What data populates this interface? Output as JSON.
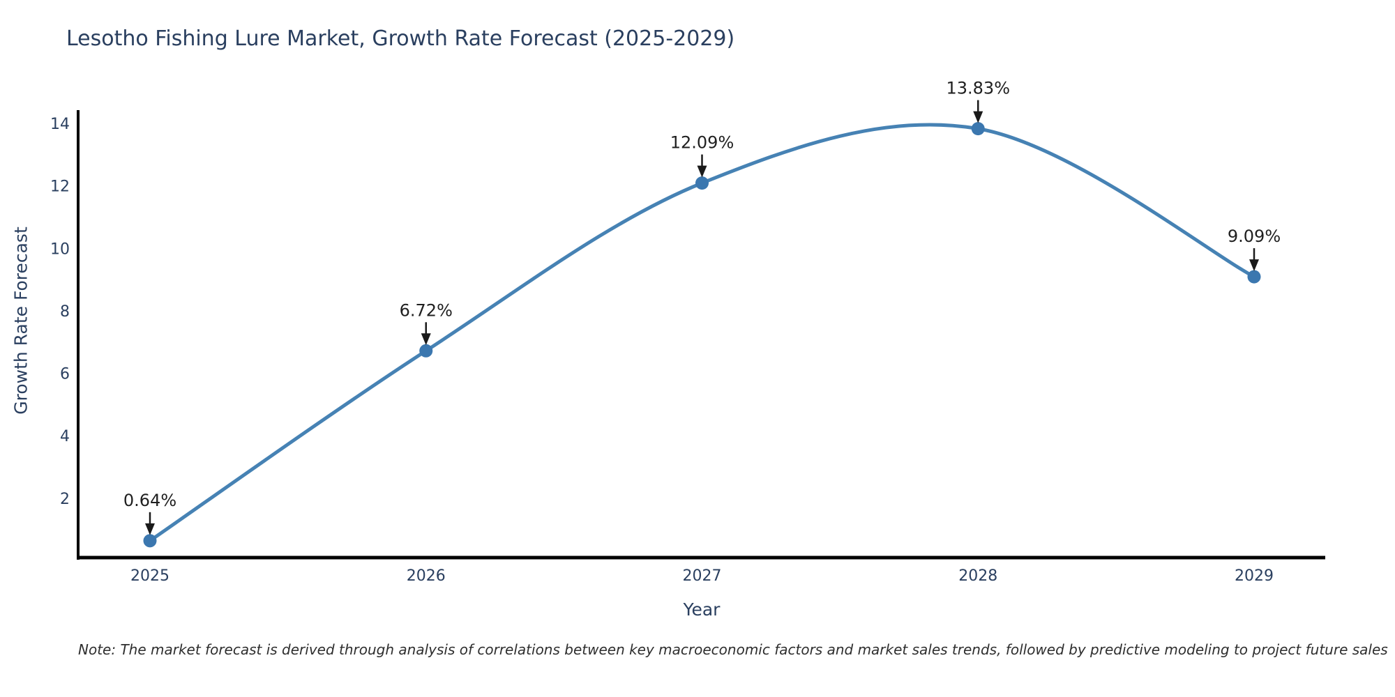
{
  "chart": {
    "title": "Lesotho Fishing Lure Market, Growth Rate Forecast (2025-2029)",
    "xlabel": "Year",
    "ylabel": "Growth Rate Forecast",
    "note": "Note: The market forecast is derived through analysis of correlations between key macroeconomic factors and market sales trends, followed by predictive modeling to project future sales"
  },
  "chart_data": {
    "type": "line",
    "line_shape": "spline",
    "title": "Lesotho Fishing Lure Market, Growth Rate Forecast (2025-2029)",
    "xlabel": "Year",
    "ylabel": "Growth Rate Forecast",
    "x": [
      2025,
      2026,
      2027,
      2028,
      2029
    ],
    "values": [
      0.64,
      6.72,
      12.09,
      13.83,
      9.09
    ],
    "point_labels": [
      "0.64%",
      "6.72%",
      "12.09%",
      "13.83%",
      "9.09%"
    ],
    "yticks": [
      2,
      4,
      6,
      8,
      10,
      12,
      14
    ],
    "ylim": [
      0,
      14.4
    ],
    "grid": false,
    "legend": false,
    "annotation_style": "label-with-down-arrow",
    "colors": {
      "line": "#4682b4",
      "marker": "#3b77af",
      "axis": "#000000",
      "axis_text": "#2a3f5f",
      "annotation": "#1a1a1a",
      "background": "#ffffff"
    }
  }
}
